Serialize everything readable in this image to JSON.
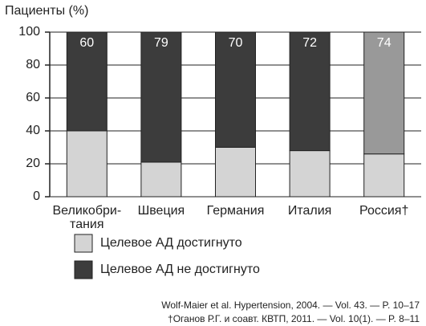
{
  "chart_data": {
    "type": "stacked_bar",
    "y_label": "Пациенты (%)",
    "categories": [
      "Великобри-\nтания",
      "Швеция",
      "Германия",
      "Италия",
      "Россия†"
    ],
    "series": [
      {
        "name": "Целевое АД достигнуто",
        "color": "#d4d4d4",
        "values": [
          40,
          21,
          30,
          28,
          26
        ]
      },
      {
        "name": "Целевое АД не достигнуто",
        "color": "#3c3c3c",
        "point_colors": [
          "#3c3c3c",
          "#3c3c3c",
          "#3c3c3c",
          "#3c3c3c",
          "#999999"
        ],
        "values": [
          60,
          79,
          70,
          72,
          74
        ]
      }
    ],
    "labeled_series": 1,
    "ylim": [
      0,
      100
    ],
    "yticks": [
      0,
      20,
      40,
      60,
      80,
      100
    ],
    "grid": true,
    "footnotes": [
      "Wolf-Maier et al. Hypertension, 2004. — Vol. 43. — P. 10–17",
      "†Оганов Р.Г. и соавт. КВТП, 2011. — Vol. 10(1). — P. 8–11"
    ]
  }
}
